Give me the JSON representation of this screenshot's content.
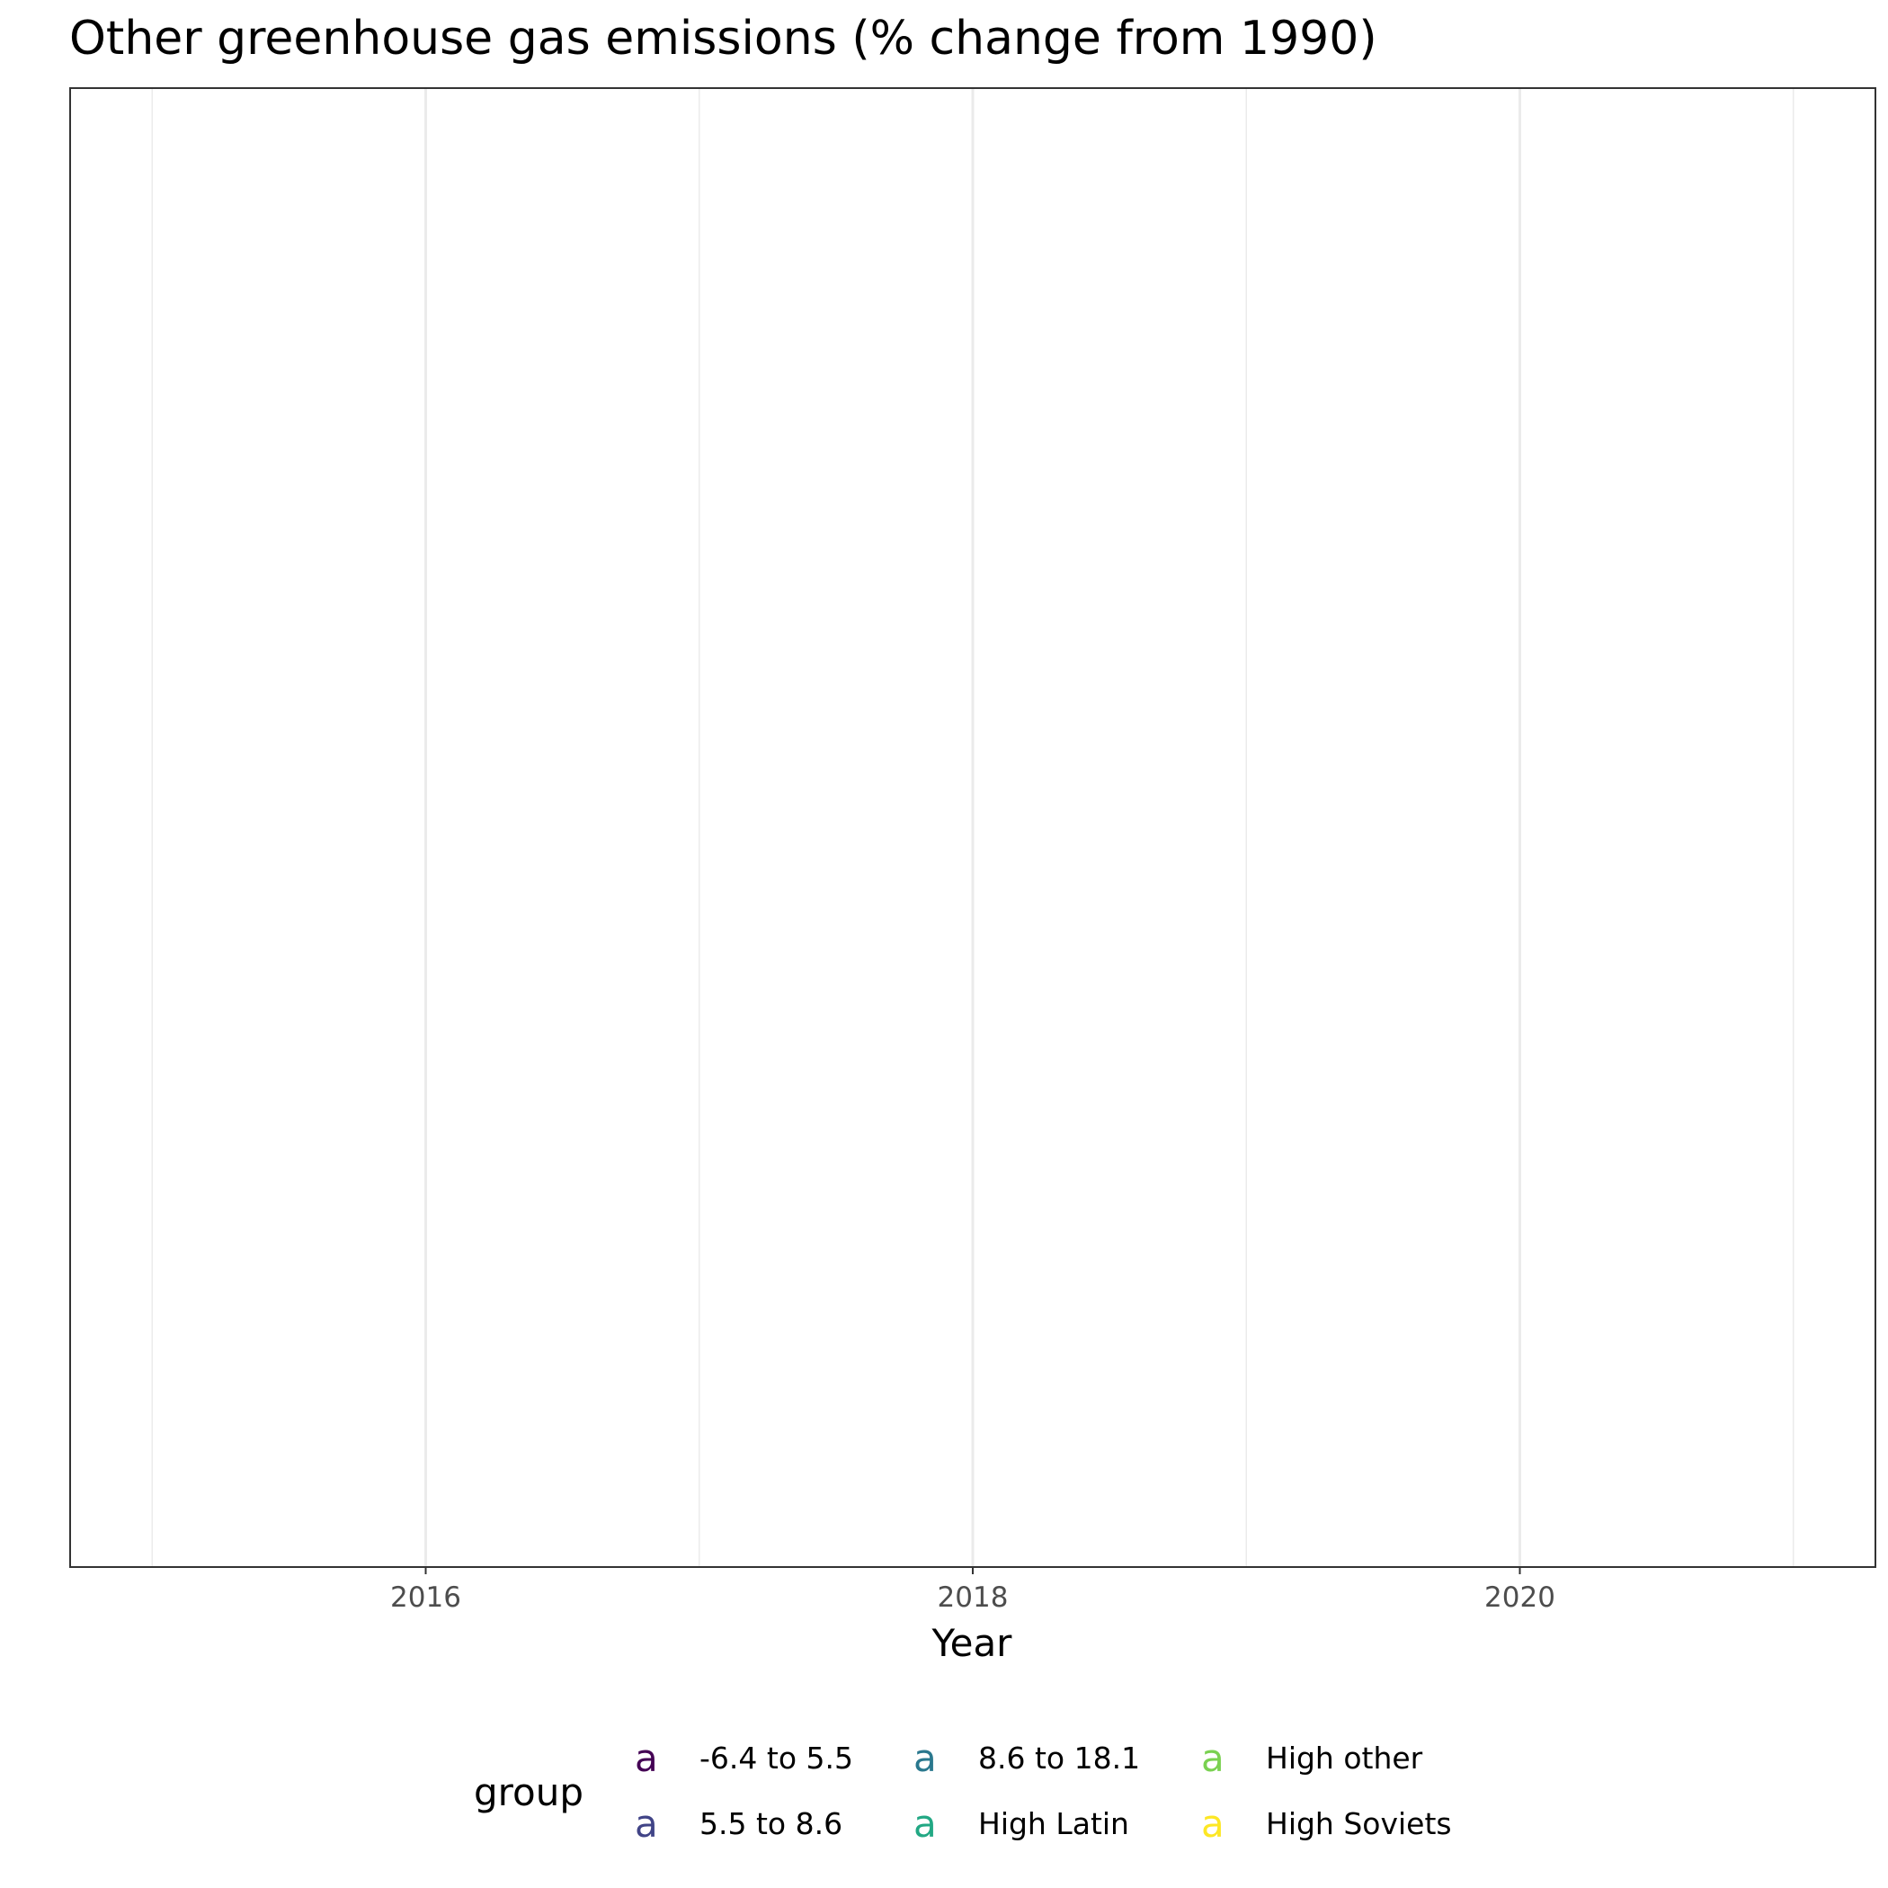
{
  "chart_data": {
    "type": "line",
    "title": "Other greenhouse gas emissions (% change from 1990)",
    "xlabel": "Year",
    "ylabel": "",
    "xlim": [
      2014.7,
      2021.3
    ],
    "x_major_ticks": [
      2016,
      2018,
      2020
    ],
    "x_tick_labels": [
      "2016",
      "2018",
      "2020"
    ],
    "x_minor_gridlines": [
      2015,
      2017,
      2019,
      2021
    ],
    "grid": "vertical only",
    "y_axis_visible": false,
    "series": [],
    "legend": {
      "title": "group",
      "position": "bottom",
      "key_glyph": "a",
      "items": [
        {
          "label": "-6.4 to 5.5",
          "color": "#440154"
        },
        {
          "label": "5.5 to 8.6",
          "color": "#414487"
        },
        {
          "label": "8.6 to 18.1",
          "color": "#2A788E"
        },
        {
          "label": "High Latin",
          "color": "#22A884"
        },
        {
          "label": "High other",
          "color": "#7AD151"
        },
        {
          "label": "High Soviets",
          "color": "#FDE725"
        }
      ]
    }
  }
}
